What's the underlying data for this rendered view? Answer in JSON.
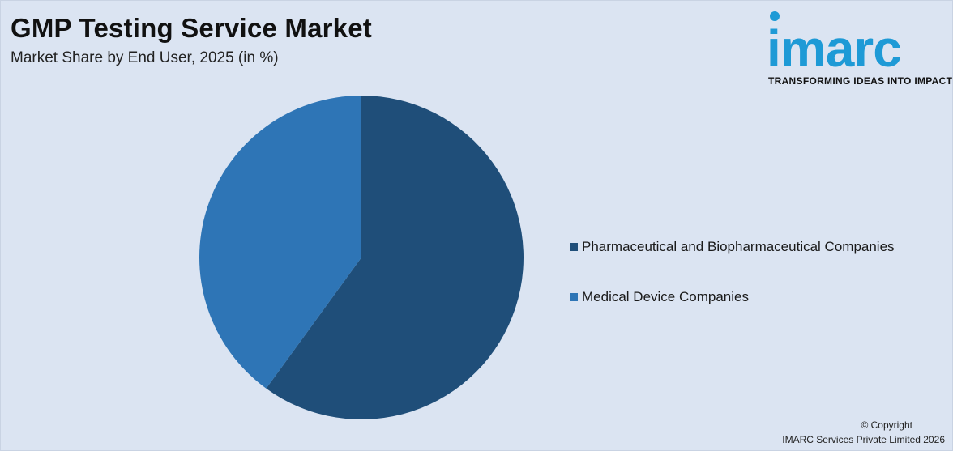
{
  "header": {
    "title": "GMP Testing Service Market",
    "subtitle": "Market Share by End User, 2025 (in %)"
  },
  "logo": {
    "word": "imarc",
    "tagline": "TRANSFORMING IDEAS INTO IMPACT",
    "color": "#1e9ad6"
  },
  "chart_data": {
    "type": "pie",
    "title": "GMP Testing Service Market",
    "subtitle": "Market Share by End User, 2025 (in %)",
    "categories": [
      "Pharmaceutical and Biopharmaceutical Companies",
      "Medical Device Companies"
    ],
    "values": [
      60,
      40
    ],
    "colors": [
      "#1f4e79",
      "#2e75b6"
    ],
    "start_angle_deg": 0,
    "direction": "clockwise",
    "legend_position": "right"
  },
  "footer": {
    "line1": "© Copyright",
    "line2": "IMARC Services Private Limited 2026"
  }
}
